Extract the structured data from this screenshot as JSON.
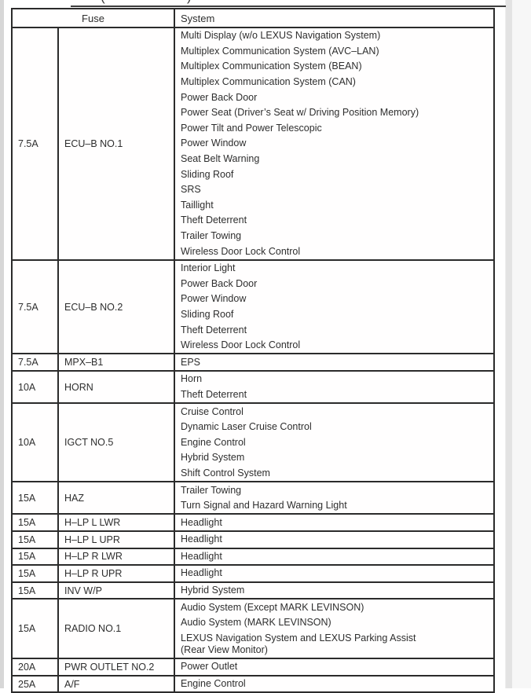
{
  "page": {
    "top_fragment": {
      "left_paren": "(",
      "right_paren": ")"
    }
  },
  "colors": {
    "border": "#2b2b2b",
    "text": "#2e2e2e",
    "page_background": "#ffffff",
    "edge_strip": "#d7d7d7"
  },
  "table": {
    "header": {
      "fuse": "Fuse",
      "system": "System"
    },
    "rows": [
      {
        "amp": "7.5A",
        "name": "ECU–B NO.1",
        "systems": [
          "Multi Display (w/o LEXUS Navigation System)",
          "Multiplex Communication System (AVC–LAN)",
          "Multiplex Communication System (BEAN)",
          "Multiplex Communication System (CAN)",
          "Power Back Door",
          "Power Seat (Driver’s Seat w/ Driving Position Memory)",
          "Power Tilt and Power Telescopic",
          "Power Window",
          "Seat Belt Warning",
          "Sliding Roof",
          "SRS",
          "Taillight",
          "Theft Deterrent",
          "Trailer Towing",
          "Wireless Door Lock Control"
        ]
      },
      {
        "amp": "7.5A",
        "name": "ECU–B NO.2",
        "systems": [
          "Interior Light",
          "Power Back Door",
          "Power Window",
          "Sliding Roof",
          "Theft Deterrent",
          "Wireless Door Lock Control"
        ]
      },
      {
        "amp": "7.5A",
        "name": "MPX–B1",
        "systems": [
          "EPS"
        ]
      },
      {
        "amp": "10A",
        "name": "HORN",
        "systems": [
          "Horn",
          "Theft Deterrent"
        ]
      },
      {
        "amp": "10A",
        "name": "IGCT NO.5",
        "systems": [
          "Cruise Control",
          "Dynamic Laser Cruise Control",
          "Engine Control",
          "Hybrid System",
          "Shift Control System"
        ]
      },
      {
        "amp": "15A",
        "name": "HAZ",
        "systems": [
          "Trailer Towing",
          "Turn Signal and Hazard Warning Light"
        ]
      },
      {
        "amp": "15A",
        "name": "H–LP L LWR",
        "systems": [
          "Headlight"
        ]
      },
      {
        "amp": "15A",
        "name": "H–LP L UPR",
        "systems": [
          "Headlight"
        ]
      },
      {
        "amp": "15A",
        "name": "H–LP R LWR",
        "systems": [
          "Headlight"
        ]
      },
      {
        "amp": "15A",
        "name": "H–LP R UPR",
        "systems": [
          "Headlight"
        ]
      },
      {
        "amp": "15A",
        "name": "INV W/P",
        "systems": [
          "Hybrid System"
        ]
      },
      {
        "amp": "15A",
        "name": "RADIO NO.1",
        "systems": [
          "Audio System (Except MARK LEVINSON)",
          "Audio System (MARK LEVINSON)",
          "LEXUS Navigation System and LEXUS Parking Assist\n(Rear View Monitor)"
        ]
      },
      {
        "amp": "20A",
        "name": "PWR OUTLET NO.2",
        "systems": [
          "Power Outlet"
        ]
      },
      {
        "amp": "25A",
        "name": "A/F",
        "systems": [
          "Engine Control"
        ]
      }
    ]
  }
}
